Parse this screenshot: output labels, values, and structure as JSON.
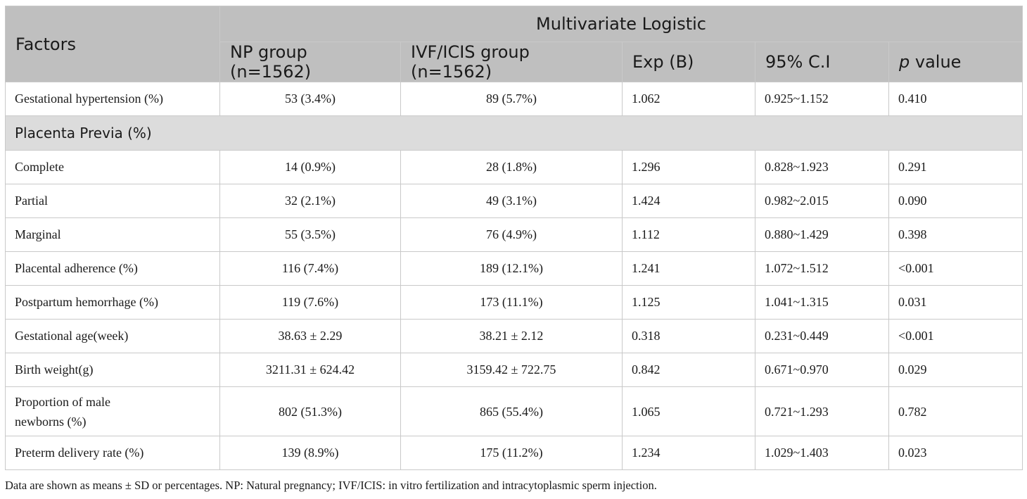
{
  "header": {
    "factors": "Factors",
    "multivariate": "Multivariate Logistic",
    "np_group": "NP group (n=1562)",
    "ivf_group": "IVF/ICIS group (n=1562)",
    "exp_b": "Exp (B)",
    "ci": "95% C.I",
    "p_italic": "p",
    "p_rest": " value"
  },
  "rows": [
    {
      "factor": "Gestational hypertension (%)",
      "np": "53 (3.4%)",
      "ivf": "89 (5.7%)",
      "expb": "1.062",
      "ci": "0.925~1.152",
      "p": "0.410"
    },
    {
      "section": "Placenta Previa (%)"
    },
    {
      "factor": "Complete",
      "np": "14 (0.9%)",
      "ivf": "28 (1.8%)",
      "expb": "1.296",
      "ci": "0.828~1.923",
      "p": "0.291"
    },
    {
      "factor": "Partial",
      "np": "32 (2.1%)",
      "ivf": "49 (3.1%)",
      "expb": "1.424",
      "ci": "0.982~2.015",
      "p": "0.090"
    },
    {
      "factor": "Marginal",
      "np": "55 (3.5%)",
      "ivf": "76 (4.9%)",
      "expb": "1.112",
      "ci": "0.880~1.429",
      "p": "0.398"
    },
    {
      "factor": "Placental adherence (%)",
      "np": "116 (7.4%)",
      "ivf": "189 (12.1%)",
      "expb": "1.241",
      "ci": "1.072~1.512",
      "p": "<0.001"
    },
    {
      "factor": "Postpartum hemorrhage (%)",
      "np": "119 (7.6%)",
      "ivf": "173 (11.1%)",
      "expb": "1.125",
      "ci": "1.041~1.315",
      "p": "0.031"
    },
    {
      "factor": "Gestational age(week)",
      "np": "38.63 ± 2.29",
      "ivf": "38.21 ± 2.12",
      "expb": "0.318",
      "ci": "0.231~0.449",
      "p": "<0.001"
    },
    {
      "factor": "Birth weight(g)",
      "np": "3211.31 ± 624.42",
      "ivf": "3159.42 ± 722.75",
      "expb": "0.842",
      "ci": "0.671~0.970",
      "p": "0.029"
    },
    {
      "factor_line1": "Proportion of male",
      "factor_line2": "newborns (%)",
      "np": "802 (51.3%)",
      "ivf": "865 (55.4%)",
      "expb": "1.065",
      "ci": "0.721~1.293",
      "p": "0.782"
    },
    {
      "factor": "Preterm delivery rate (%)",
      "np": "139 (8.9%)",
      "ivf": "175 (11.2%)",
      "expb": "1.234",
      "ci": "1.029~1.403",
      "p": "0.023"
    }
  ],
  "footnote": "Data are shown as means ± SD or percentages. NP: Natural pregnancy; IVF/ICIS: in vitro fertilization and intracytoplasmic sperm injection."
}
